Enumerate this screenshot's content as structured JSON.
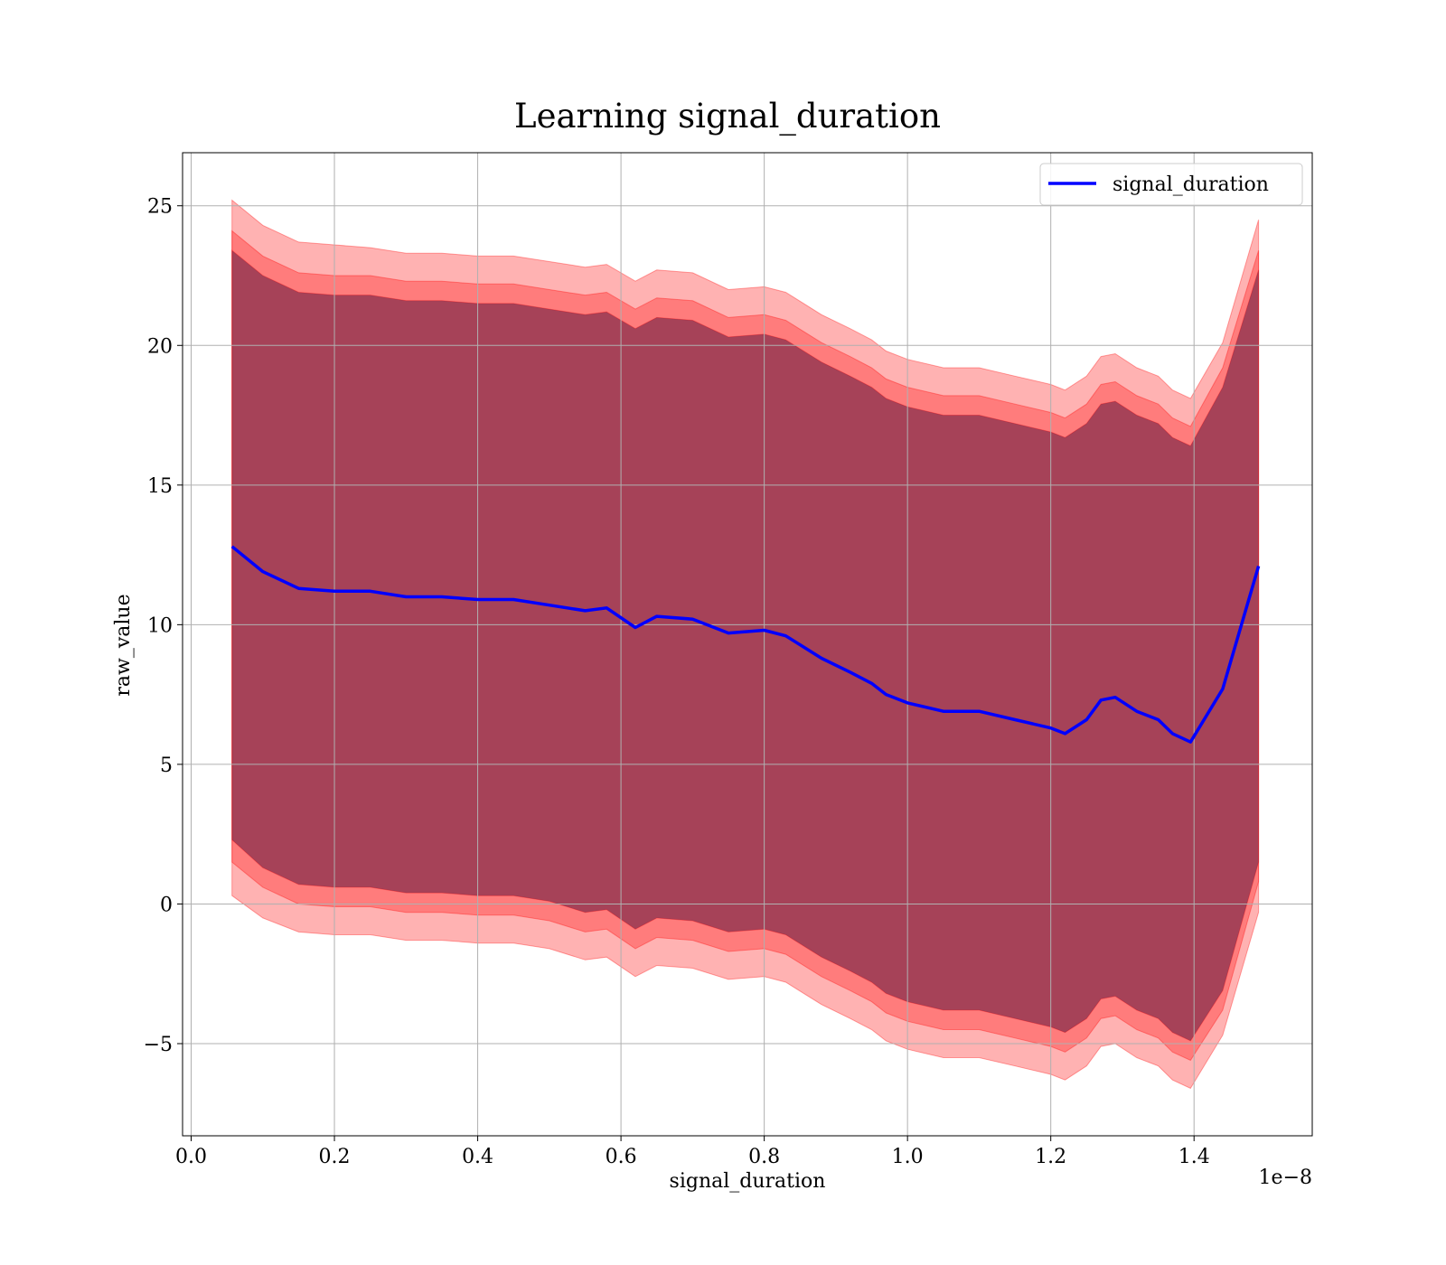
{
  "chart_data": {
    "type": "line",
    "title": "Learning signal_duration",
    "xlabel": "signal_duration",
    "ylabel": "raw_value",
    "x_offset_label": "1e−8",
    "xlim": [
      -0.012,
      1.565
    ],
    "ylim": [
      -8.3,
      26.9
    ],
    "x_ticks": [
      0.0,
      0.2,
      0.4,
      0.6,
      0.8,
      1.0,
      1.2,
      1.4
    ],
    "x_tick_labels": [
      "0.0",
      "0.2",
      "0.4",
      "0.6",
      "0.8",
      "1.0",
      "1.2",
      "1.4"
    ],
    "y_ticks": [
      -5,
      0,
      5,
      10,
      15,
      20,
      25
    ],
    "y_tick_labels": [
      "−5",
      "0",
      "5",
      "10",
      "15",
      "20",
      "25"
    ],
    "grid": true,
    "legend_position": "upper right",
    "colors": {
      "mean_line": "#0000ff",
      "band": "#ff0000",
      "band_overlap_mid": "#c19a7a",
      "band_overlap_inner": "#a1717a",
      "grid": "#b0b0b0"
    },
    "series": [
      {
        "name": "signal_duration",
        "x": [
          0.057,
          0.1,
          0.15,
          0.2,
          0.25,
          0.3,
          0.35,
          0.4,
          0.45,
          0.5,
          0.55,
          0.58,
          0.62,
          0.65,
          0.7,
          0.75,
          0.8,
          0.83,
          0.88,
          0.92,
          0.95,
          0.97,
          1.0,
          1.05,
          1.1,
          1.15,
          1.2,
          1.22,
          1.25,
          1.27,
          1.29,
          1.32,
          1.35,
          1.37,
          1.395,
          1.44,
          1.49
        ],
        "mean": [
          12.8,
          11.9,
          11.3,
          11.2,
          11.2,
          11.0,
          11.0,
          10.9,
          10.9,
          10.7,
          10.5,
          10.6,
          9.9,
          10.3,
          10.2,
          9.7,
          9.8,
          9.6,
          8.8,
          8.3,
          7.9,
          7.5,
          7.2,
          6.9,
          6.9,
          6.6,
          6.3,
          6.1,
          6.6,
          7.3,
          7.4,
          6.9,
          6.6,
          6.1,
          5.8,
          7.7,
          12.1
        ]
      }
    ],
    "bands": [
      {
        "name": "",
        "lower": [
          0.3,
          -0.5,
          -1.0,
          -1.1,
          -1.1,
          -1.3,
          -1.3,
          -1.4,
          -1.4,
          -1.6,
          -2.0,
          -1.9,
          -2.6,
          -2.2,
          -2.3,
          -2.7,
          -2.6,
          -2.8,
          -3.6,
          -4.1,
          -4.5,
          -4.9,
          -5.2,
          -5.5,
          -5.5,
          -5.8,
          -6.1,
          -6.3,
          -5.8,
          -5.1,
          -5.0,
          -5.5,
          -5.8,
          -6.3,
          -6.6,
          -4.7,
          -0.3
        ],
        "upper": [
          25.2,
          24.3,
          23.7,
          23.6,
          23.5,
          23.3,
          23.3,
          23.2,
          23.2,
          23.0,
          22.8,
          22.9,
          22.3,
          22.7,
          22.6,
          22.0,
          22.1,
          21.9,
          21.1,
          20.6,
          20.2,
          19.8,
          19.5,
          19.2,
          19.2,
          18.9,
          18.6,
          18.4,
          18.9,
          19.6,
          19.7,
          19.2,
          18.9,
          18.4,
          18.1,
          20.1,
          24.5
        ]
      },
      {
        "name": "",
        "lower": [
          1.5,
          0.6,
          0.0,
          -0.1,
          -0.1,
          -0.3,
          -0.3,
          -0.4,
          -0.4,
          -0.6,
          -1.0,
          -0.9,
          -1.6,
          -1.2,
          -1.3,
          -1.7,
          -1.6,
          -1.8,
          -2.6,
          -3.1,
          -3.5,
          -3.9,
          -4.2,
          -4.5,
          -4.5,
          -4.8,
          -5.1,
          -5.3,
          -4.8,
          -4.1,
          -4.0,
          -4.5,
          -4.8,
          -5.3,
          -5.6,
          -3.8,
          0.8
        ],
        "upper": [
          24.1,
          23.2,
          22.6,
          22.5,
          22.5,
          22.3,
          22.3,
          22.2,
          22.2,
          22.0,
          21.8,
          21.9,
          21.3,
          21.7,
          21.6,
          21.0,
          21.1,
          20.9,
          20.1,
          19.6,
          19.2,
          18.8,
          18.5,
          18.2,
          18.2,
          17.9,
          17.6,
          17.4,
          17.9,
          18.6,
          18.7,
          18.2,
          17.9,
          17.4,
          17.1,
          19.2,
          23.4
        ]
      },
      {
        "name": "",
        "lower": [
          2.3,
          1.3,
          0.7,
          0.6,
          0.6,
          0.4,
          0.4,
          0.3,
          0.3,
          0.1,
          -0.3,
          -0.2,
          -0.9,
          -0.5,
          -0.6,
          -1.0,
          -0.9,
          -1.1,
          -1.9,
          -2.4,
          -2.8,
          -3.2,
          -3.5,
          -3.8,
          -3.8,
          -4.1,
          -4.4,
          -4.6,
          -4.1,
          -3.4,
          -3.3,
          -3.8,
          -4.1,
          -4.6,
          -4.9,
          -3.1,
          1.5
        ],
        "upper": [
          23.4,
          22.5,
          21.9,
          21.8,
          21.8,
          21.6,
          21.6,
          21.5,
          21.5,
          21.3,
          21.1,
          21.2,
          20.6,
          21.0,
          20.9,
          20.3,
          20.4,
          20.2,
          19.4,
          18.9,
          18.5,
          18.1,
          17.8,
          17.5,
          17.5,
          17.2,
          16.9,
          16.7,
          17.2,
          17.9,
          18.0,
          17.5,
          17.2,
          16.7,
          16.4,
          18.5,
          22.7
        ]
      }
    ]
  }
}
